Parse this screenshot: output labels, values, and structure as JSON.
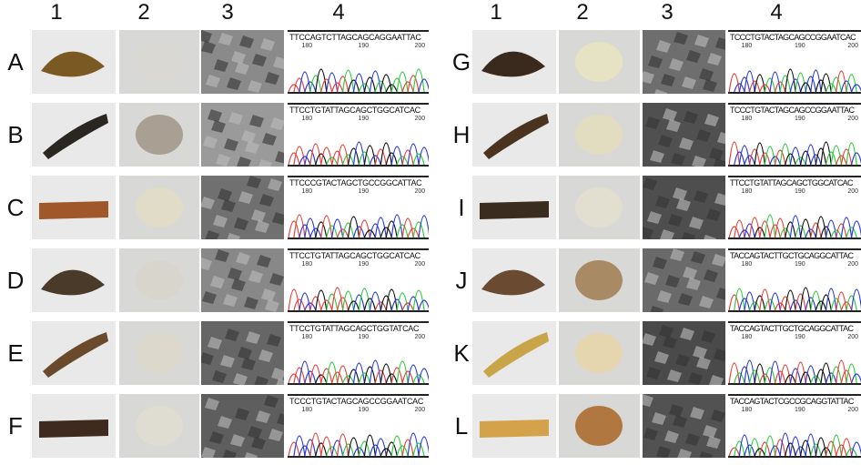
{
  "column_labels": [
    "1",
    "2",
    "3",
    "4"
  ],
  "tick_labels": [
    "180",
    "190",
    "200"
  ],
  "base_colors": {
    "A": "#2ecc40",
    "C": "#2a3bd8",
    "G": "#111111",
    "T": "#e8413a"
  },
  "panels": [
    {
      "label": "A",
      "sequence": "TTCCAGTCTTAGCAGCAGGAATTAC",
      "specimen_color": "#7a5a22",
      "powder_color": "#d9d8d2",
      "sem_tone": "#8a8a8a"
    },
    {
      "label": "B",
      "sequence": "TTCCTGTATTAGCAGCTGGCATCAC",
      "specimen_color": "#2a2622",
      "powder_color": "#a99f92",
      "sem_tone": "#9a9a9a"
    },
    {
      "label": "C",
      "sequence": "TTCCCGTACTAGCTGCCGGCATTAC",
      "specimen_color": "#a0582a",
      "powder_color": "#e0dcc8",
      "sem_tone": "#707070"
    },
    {
      "label": "D",
      "sequence": "TTCCTGTATTAGCAGCTGGCATCAC",
      "specimen_color": "#4a3a2a",
      "powder_color": "#d8d6cc",
      "sem_tone": "#888888"
    },
    {
      "label": "E",
      "sequence": "TTCCTGTATTAGCAGCTGGTATCAC",
      "specimen_color": "#6a4a2a",
      "powder_color": "#dcd9cc",
      "sem_tone": "#666666"
    },
    {
      "label": "F",
      "sequence": "TCCCTGTACTAGCAGCCGGAATCAC",
      "specimen_color": "#3e2a1e",
      "powder_color": "#dfddd2",
      "sem_tone": "#5e5e5e"
    },
    {
      "label": "G",
      "sequence": "TCCCTGTACTAGCAGCCGGAATCAC",
      "specimen_color": "#3a2a1e",
      "powder_color": "#e6e2c4",
      "sem_tone": "#6e6e6e"
    },
    {
      "label": "H",
      "sequence": "TCCCTGTACTAGCAGCCGGAATTAC",
      "specimen_color": "#4a3420",
      "powder_color": "#e2dcc0",
      "sem_tone": "#505050"
    },
    {
      "label": "I",
      "sequence": "TTCCTGTATTAGCAGCTGGCATCAC",
      "specimen_color": "#3a2c1e",
      "powder_color": "#e2dfd0",
      "sem_tone": "#4e4e4e"
    },
    {
      "label": "J",
      "sequence": "TACCAGTACTTGCTGCAGGCATTAC",
      "specimen_color": "#6a4a30",
      "powder_color": "#a88a64",
      "sem_tone": "#6a6a6a"
    },
    {
      "label": "K",
      "sequence": "TACCAGTACTTGCTGCAGGCATTAC",
      "specimen_color": "#c9a54a",
      "powder_color": "#e6d6b0",
      "sem_tone": "#4a4a4a"
    },
    {
      "label": "L",
      "sequence": "TACCAGTACTCGCCGCAGGTATTAC",
      "specimen_color": "#d4a24a",
      "powder_color": "#b07840",
      "sem_tone": "#525252"
    }
  ]
}
